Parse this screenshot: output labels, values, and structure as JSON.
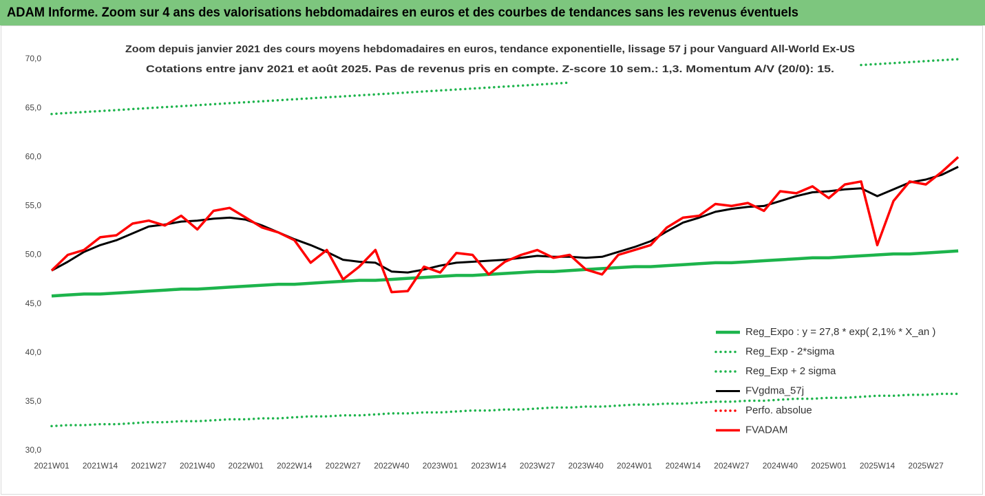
{
  "chart_data": {
    "type": "line",
    "title": "ADAM Informe. Zoom sur 4 ans des valorisations hebdomadaires en euros et des courbes de tendances sans les revenus éventuels",
    "subtitle": [
      "Zoom depuis janvier 2021 des cours moyens hebdomadaires en euros, tendance exponentielle, lissage 57 j pour Vanguard All-World Ex-US",
      "Cotations entre janv 2021 et août 2025. Pas de revenus pris en compte. Z-score 10 sem.: 1,3. Momentum A/V (20/0): 15."
    ],
    "categories": [
      "2021W01",
      null,
      null,
      "2021W14",
      null,
      null,
      "2021W27",
      null,
      null,
      "2021W40",
      null,
      null,
      "2022W01",
      null,
      null,
      "2022W14",
      null,
      null,
      "2022W27",
      null,
      null,
      "2022W40",
      null,
      null,
      "2023W01",
      null,
      null,
      "2023W14",
      null,
      null,
      "2023W27",
      null,
      null,
      "2023W40",
      null,
      null,
      "2024W01",
      null,
      null,
      "2024W14",
      null,
      null,
      "2024W27",
      null,
      null,
      "2024W40",
      null,
      null,
      "2025W01",
      null,
      null,
      "2025W14",
      null,
      null,
      "2025W27",
      null,
      null
    ],
    "ylim": [
      30,
      70
    ],
    "yticks": [
      {
        "value": 30,
        "label": "30,0"
      },
      {
        "value": 35,
        "label": "35,0"
      },
      {
        "value": 40,
        "label": "40,0"
      },
      {
        "value": 45,
        "label": "45,0"
      },
      {
        "value": 50,
        "label": "50,0"
      },
      {
        "value": 55,
        "label": "55,0"
      },
      {
        "value": 60,
        "label": "60,0"
      },
      {
        "value": 65,
        "label": "65,0"
      },
      {
        "value": 70,
        "label": "70,0"
      }
    ],
    "grid": false,
    "legend": "right",
    "series": [
      {
        "name": "Reg_Expo : y = 27,8 * exp( 2,1% *  X_an )",
        "color": "#1db44c",
        "style": "solid",
        "values": [
          45.8,
          45.9,
          46.0,
          46.0,
          46.1,
          46.2,
          46.3,
          46.4,
          46.5,
          46.5,
          46.6,
          46.7,
          46.8,
          46.9,
          47.0,
          47.0,
          47.1,
          47.2,
          47.3,
          47.4,
          47.4,
          47.5,
          47.6,
          47.7,
          47.8,
          47.9,
          47.9,
          48.0,
          48.1,
          48.2,
          48.3,
          48.3,
          48.4,
          48.5,
          48.6,
          48.7,
          48.8,
          48.8,
          48.9,
          49.0,
          49.1,
          49.2,
          49.2,
          49.3,
          49.4,
          49.5,
          49.6,
          49.7,
          49.7,
          49.8,
          49.9,
          50.0,
          50.1,
          50.1,
          50.2,
          50.3,
          50.4
        ]
      },
      {
        "name": "Reg_Exp - 2*sigma",
        "color": "#1db44c",
        "style": "dotted",
        "values": [
          32.5,
          32.6,
          32.6,
          32.7,
          32.7,
          32.8,
          32.9,
          32.9,
          33.0,
          33.0,
          33.1,
          33.2,
          33.2,
          33.3,
          33.3,
          33.4,
          33.5,
          33.5,
          33.6,
          33.6,
          33.7,
          33.8,
          33.8,
          33.9,
          33.9,
          34.0,
          34.1,
          34.1,
          34.2,
          34.2,
          34.3,
          34.4,
          34.4,
          34.5,
          34.5,
          34.6,
          34.7,
          34.7,
          34.8,
          34.8,
          34.9,
          35.0,
          35.0,
          35.1,
          35.1,
          35.2,
          35.3,
          35.3,
          35.4,
          35.4,
          35.5,
          35.6,
          35.6,
          35.7,
          35.7,
          35.8,
          35.8
        ]
      },
      {
        "name": "Reg_Exp + 2 sigma",
        "color": "#1db44c",
        "style": "dotted",
        "values": [
          64.4,
          64.5,
          64.6,
          64.7,
          64.8,
          64.9,
          65.0,
          65.1,
          65.2,
          65.3,
          65.4,
          65.5,
          65.6,
          65.7,
          65.8,
          65.9,
          66.0,
          66.1,
          66.2,
          66.3,
          66.4,
          66.5,
          66.6,
          66.7,
          66.8,
          66.9,
          67.0,
          67.1,
          67.2,
          67.3,
          67.4,
          67.5,
          67.6,
          null,
          null,
          null,
          null,
          null,
          null,
          null,
          null,
          null,
          null,
          null,
          null,
          null,
          null,
          null,
          null,
          null,
          69.4,
          69.5,
          69.6,
          69.7,
          69.8,
          69.9,
          70.0
        ]
      },
      {
        "name": "FVgdma_57j",
        "color": "#000000",
        "style": "solid",
        "values": [
          48.4,
          49.3,
          50.3,
          51.0,
          51.5,
          52.2,
          52.9,
          53.1,
          53.4,
          53.5,
          53.7,
          53.8,
          53.6,
          53.0,
          52.3,
          51.6,
          51.0,
          50.3,
          49.5,
          49.3,
          49.2,
          48.3,
          48.2,
          48.5,
          48.9,
          49.2,
          49.3,
          49.4,
          49.5,
          49.7,
          49.9,
          49.8,
          49.8,
          49.7,
          49.8,
          50.3,
          50.8,
          51.4,
          52.4,
          53.3,
          53.8,
          54.4,
          54.7,
          54.9,
          55.0,
          55.5,
          56.0,
          56.4,
          56.5,
          56.7,
          56.8,
          56.0,
          56.7,
          57.4,
          57.7,
          58.2,
          59.0
        ]
      },
      {
        "name": "Perfo. absolue",
        "color": "#ff0000",
        "style": "dotted",
        "values": [
          null,
          null,
          null,
          null,
          null,
          null,
          null,
          null,
          null,
          null,
          null,
          null,
          null,
          null,
          null,
          null,
          null,
          null,
          null,
          null,
          null,
          null,
          null,
          null,
          null,
          null,
          null,
          null,
          null,
          null,
          null,
          null,
          null,
          null,
          null,
          null,
          null,
          null,
          null,
          null,
          null,
          null,
          null,
          null,
          null,
          null,
          null,
          null,
          null,
          null,
          null,
          null,
          null,
          null,
          null,
          null,
          null
        ]
      },
      {
        "name": "FVADAM",
        "color": "#ff0000",
        "style": "solid",
        "values": [
          48.4,
          50.0,
          50.5,
          51.8,
          52.0,
          53.2,
          53.5,
          53.0,
          54.0,
          52.6,
          54.5,
          54.8,
          53.8,
          52.8,
          52.3,
          51.5,
          49.2,
          50.5,
          47.5,
          48.8,
          50.5,
          46.2,
          46.3,
          48.8,
          48.2,
          50.2,
          50.0,
          48.0,
          49.3,
          50.0,
          50.5,
          49.7,
          50.0,
          48.5,
          48.0,
          50.0,
          50.5,
          51.0,
          52.8,
          53.8,
          54.0,
          55.2,
          55.0,
          55.3,
          54.5,
          56.5,
          56.3,
          57.0,
          55.8,
          57.2,
          57.5,
          51.0,
          55.5,
          57.5,
          57.2,
          58.5,
          60.0
        ]
      }
    ]
  }
}
